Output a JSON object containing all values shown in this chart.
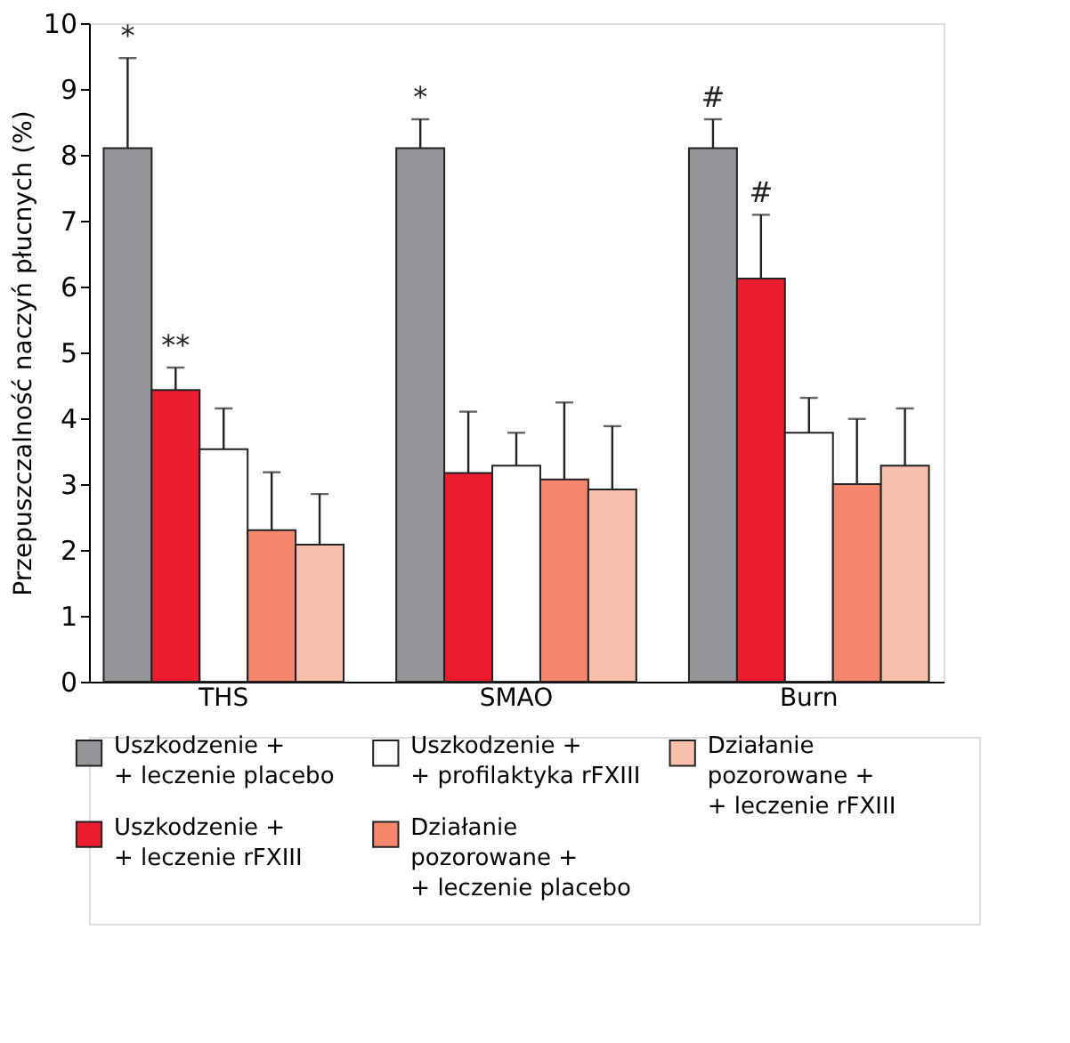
{
  "chart_data": {
    "type": "bar",
    "ylabel": "Przepuszczalność naczyń płucnych (%)",
    "categories": [
      "THS",
      "SMAO",
      "Burn"
    ],
    "series": [
      {
        "name": "Uszkodzenie +\n+ leczenie placebo",
        "color": "#939598",
        "values": [
          8.1,
          8.1,
          8.1
        ],
        "errors": [
          [
            8.1,
            9.47
          ],
          [
            8.1,
            8.54
          ],
          [
            8.1,
            8.54
          ]
        ]
      },
      {
        "name": "Uszkodzenie +\n+ leczenie rFXIII",
        "color": "#ed1c2e",
        "values": [
          4.43,
          3.17,
          6.12
        ],
        "errors": [
          [
            4.43,
            4.77
          ],
          [
            3.17,
            4.1
          ],
          [
            6.12,
            7.09
          ]
        ]
      },
      {
        "name": "Uszkodzenie +\n+ profilaktyka rFXIII",
        "color": "#ffffff",
        "values": [
          3.53,
          3.28,
          3.78
        ],
        "errors": [
          [
            3.53,
            4.15
          ],
          [
            3.28,
            3.78
          ],
          [
            3.78,
            4.31
          ]
        ]
      },
      {
        "name": "Działanie\npozorowane +\n+ leczenie placebo",
        "color": "#f4866e",
        "values": [
          2.3,
          3.07,
          3.0
        ],
        "errors": [
          [
            2.3,
            3.18
          ],
          [
            3.07,
            4.24
          ],
          [
            3.0,
            3.99
          ]
        ]
      },
      {
        "name": "Działanie\npozorowane +\n+ leczenie rFXIII",
        "color": "#f9bfad",
        "values": [
          2.08,
          2.92,
          3.28
        ],
        "errors": [
          [
            2.08,
            2.85
          ],
          [
            2.92,
            3.88
          ],
          [
            3.28,
            4.15
          ]
        ]
      }
    ],
    "annotations": [
      "*",
      "**",
      "*",
      "#",
      "#"
    ],
    "ylim": [
      0,
      10
    ],
    "yticks": [
      0,
      1,
      2,
      3,
      4,
      5,
      6,
      7,
      8,
      9,
      10
    ],
    "grid": false,
    "legend": "bottom"
  }
}
